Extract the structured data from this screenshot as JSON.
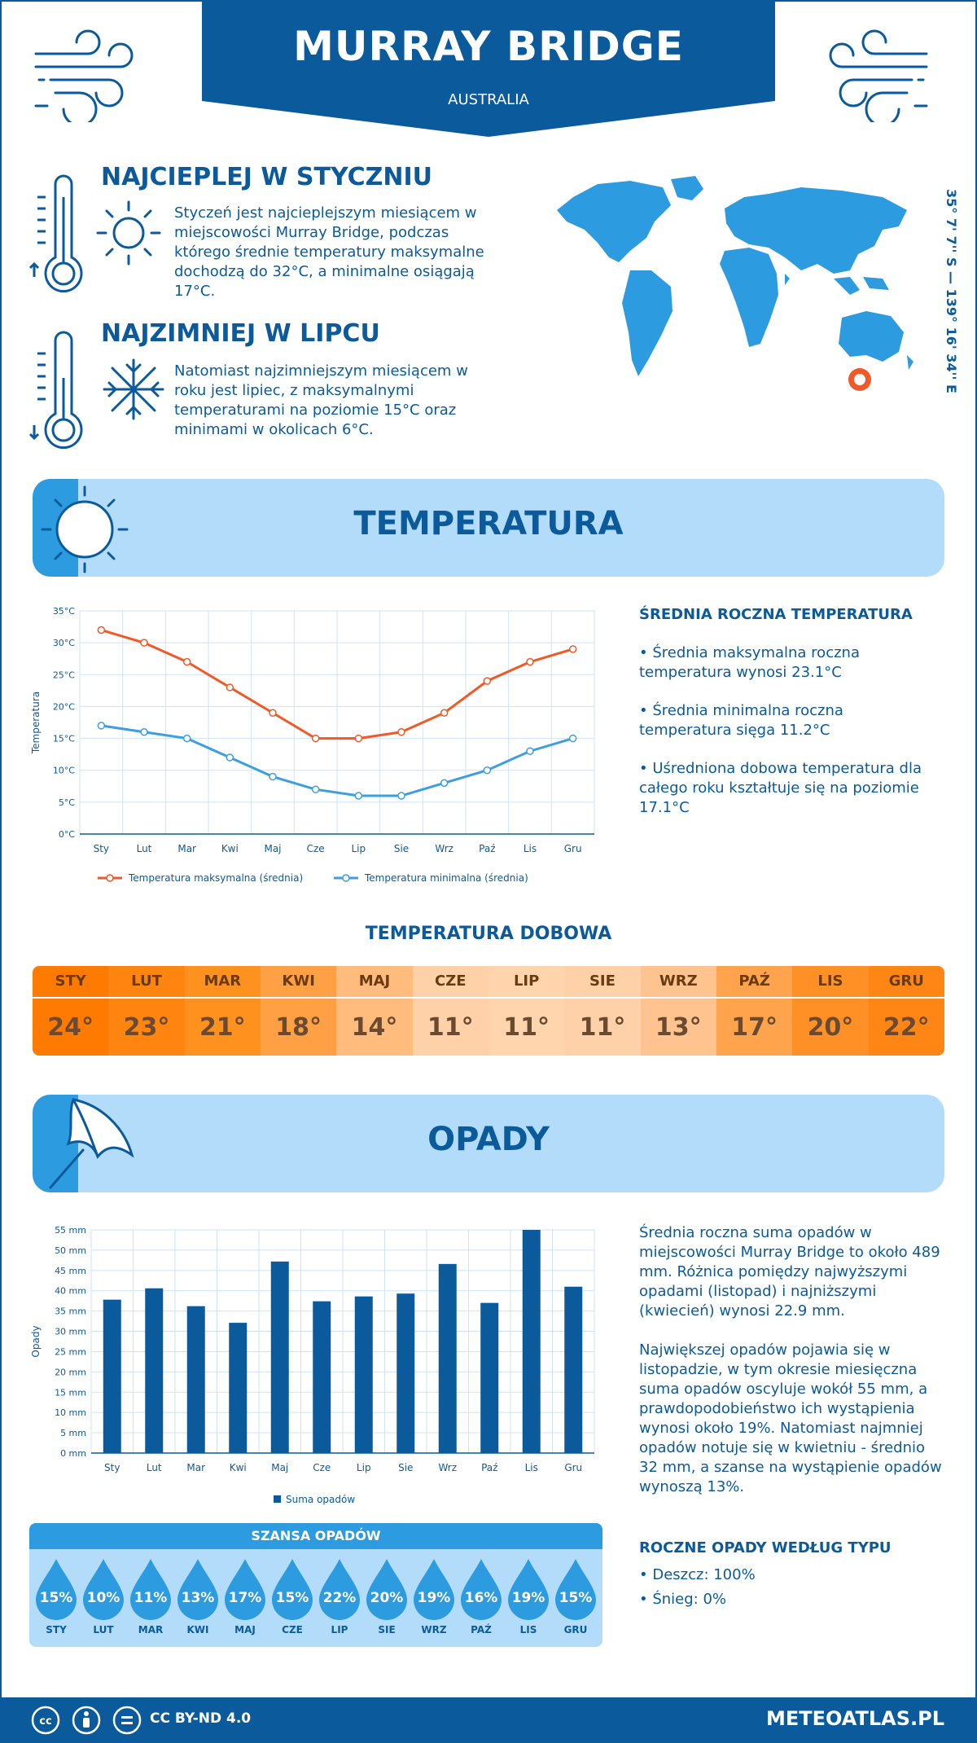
{
  "header": {
    "title": "MURRAY BRIDGE",
    "subtitle": "AUSTRALIA",
    "color_banner": "#0b5a9c"
  },
  "facts": {
    "warmest_title": "NAJCIEPLEJ W STYCZNIU",
    "warmest_text": "Styczeń jest najcieplejszym miesiącem w miejscowości Murray Bridge, podczas którego średnie temperatury maksymalne dochodzą do 32°C, a minimalne osiągają 17°C.",
    "coldest_title": "NAJZIMNIEJ W LIPCU",
    "coldest_text": "Natomiast najzimniejszym miesiącem w roku jest lipiec, z maksymalnymi temperaturami na poziomie 15°C oraz minimami w okolicach 6°C."
  },
  "map": {
    "coords": "35° 7' 7'' S — 139° 16' 34'' E",
    "land_color": "#2d9be0",
    "marker_color": "#f05a28"
  },
  "temperature": {
    "section_title": "TEMPERATURA",
    "side_title": "ŚREDNIA ROCZNA TEMPERATURA",
    "bullets": [
      "• Średnia maksymalna roczna temperatura wynosi 23.1°C",
      "• Średnia minimalna roczna temperatura sięga 11.2°C",
      "• Uśredniona dobowa temperatura dla całego roku kształtuje się na poziomie 17.1°C"
    ],
    "daily_title": "TEMPERATURA DOBOWA",
    "daily": [
      {
        "month": "STY",
        "value": "24°",
        "color": "#ff7a00"
      },
      {
        "month": "LUT",
        "value": "23°",
        "color": "#ff8410"
      },
      {
        "month": "MAR",
        "value": "21°",
        "color": "#ff911f"
      },
      {
        "month": "KWI",
        "value": "18°",
        "color": "#ffa044"
      },
      {
        "month": "MAJ",
        "value": "14°",
        "color": "#ffbc7c"
      },
      {
        "month": "CZE",
        "value": "11°",
        "color": "#ffd1a8"
      },
      {
        "month": "LIP",
        "value": "11°",
        "color": "#ffd5ae"
      },
      {
        "month": "SIE",
        "value": "11°",
        "color": "#ffd1a8"
      },
      {
        "month": "WRZ",
        "value": "13°",
        "color": "#ffc390"
      },
      {
        "month": "PAŹ",
        "value": "17°",
        "color": "#ffa34c"
      },
      {
        "month": "LIS",
        "value": "20°",
        "color": "#ff9026"
      },
      {
        "month": "GRU",
        "value": "22°",
        "color": "#ff8614"
      }
    ]
  },
  "precipitation": {
    "section_title": "OPADY",
    "text1": "Średnia roczna suma opadów w miejscowości Murray Bridge to około 489 mm. Różnica pomiędzy najwyższymi opadami (listopad) i najniższymi (kwiecień) wynosi 22.9 mm.",
    "text2": "Największej opadów pojawia się w listopadzie, w tym okresie miesięczna suma opadów oscyluje wokół 55 mm, a prawdopodobieństwo ich wystąpienia wynosi około 19%. Natomiast najmniej opadów notuje się w kwietniu - średnio 32 mm, a szanse na wystąpienie opadów wynoszą 13%.",
    "type_title": "ROCZNE OPADY WEDŁUG TYPU",
    "type_rain": "• Deszcz: 100%",
    "type_snow": "• Śnieg: 0%",
    "chance_title": "SZANSA OPADÓW",
    "chance": [
      {
        "month": "STY",
        "value": "15%"
      },
      {
        "month": "LUT",
        "value": "10%"
      },
      {
        "month": "MAR",
        "value": "11%"
      },
      {
        "month": "KWI",
        "value": "13%"
      },
      {
        "month": "MAJ",
        "value": "17%"
      },
      {
        "month": "CZE",
        "value": "15%"
      },
      {
        "month": "LIP",
        "value": "22%"
      },
      {
        "month": "SIE",
        "value": "20%"
      },
      {
        "month": "WRZ",
        "value": "19%"
      },
      {
        "month": "PAŹ",
        "value": "16%"
      },
      {
        "month": "LIS",
        "value": "19%"
      },
      {
        "month": "GRU",
        "value": "15%"
      }
    ]
  },
  "chart_data": [
    {
      "type": "line",
      "categories": [
        "Sty",
        "Lut",
        "Mar",
        "Kwi",
        "Maj",
        "Cze",
        "Lip",
        "Sie",
        "Wrz",
        "Paź",
        "Lis",
        "Gru"
      ],
      "series": [
        {
          "name": "Temperatura maksymalna (średnia)",
          "values": [
            32,
            30,
            27,
            23,
            19,
            15,
            15,
            16,
            19,
            24,
            27,
            29
          ],
          "color": "#f05a28"
        },
        {
          "name": "Temperatura minimalna (średnia)",
          "values": [
            17,
            16,
            15,
            12,
            9,
            7,
            6,
            6,
            8,
            10,
            13,
            15
          ],
          "color": "#3d9ee0"
        }
      ],
      "ylabel": "Temperatura",
      "ylim": [
        0,
        35
      ],
      "yticks": [
        "0°C",
        "5°C",
        "10°C",
        "15°C",
        "20°C",
        "25°C",
        "30°C",
        "35°C"
      ],
      "grid": true,
      "legend": "bottom"
    },
    {
      "type": "bar",
      "categories": [
        "Sty",
        "Lut",
        "Mar",
        "Kwi",
        "Maj",
        "Cze",
        "Lip",
        "Sie",
        "Wrz",
        "Paź",
        "Lis",
        "Gru"
      ],
      "series": [
        {
          "name": "Suma opadów",
          "values": [
            37.8,
            40.6,
            36.2,
            32.1,
            47.2,
            37.4,
            38.6,
            39.3,
            46.6,
            37.0,
            55.0,
            41.0
          ],
          "color": "#0b5a9c"
        }
      ],
      "ylabel": "Opady",
      "ylim": [
        0,
        55
      ],
      "yticks": [
        "0 mm",
        "5 mm",
        "10 mm",
        "15 mm",
        "20 mm",
        "25 mm",
        "30 mm",
        "35 mm",
        "40 mm",
        "45 mm",
        "50 mm",
        "55 mm"
      ],
      "grid": true,
      "legend": "bottom"
    }
  ],
  "footer": {
    "license": "CC BY-ND 4.0",
    "site": "METEOATLAS.PL"
  }
}
